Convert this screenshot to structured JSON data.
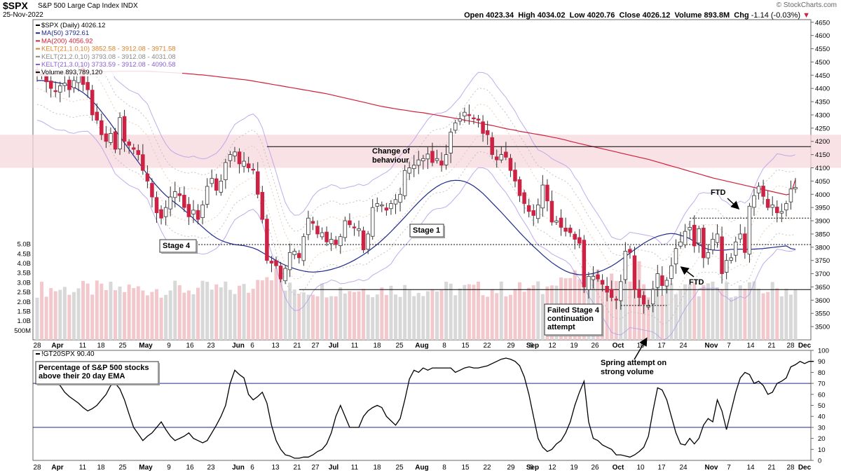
{
  "header": {
    "symbol": "$SPX",
    "name": "S&P 500 Large Cap Index",
    "exchange": "INDX",
    "date": "25-Nov-2022",
    "open_label": "Open",
    "open": "4023.34",
    "high_label": "High",
    "high": "4034.02",
    "low_label": "Low",
    "low": "4020.76",
    "close_label": "Close",
    "close": "4026.12",
    "volume_label": "Volume",
    "volume": "893.8M",
    "chg_label": "Chg",
    "chg": "-1.14 (-0.03%)",
    "watermark": "© StockCharts.com"
  },
  "colors": {
    "up": "#ffffff",
    "down": "#cc2244",
    "candle_edge": "#333333",
    "ma50": "#1f2a8c",
    "ma200": "#d0203a",
    "kelt1": "#e8c4a8",
    "kelt2": "#b8b8b8",
    "kelt3": "#b59ee8",
    "zone": "#f7d8dc",
    "vol_up": "#d8d8d8",
    "vol_down": "#f2c8cc"
  },
  "chart_data": [
    {
      "type": "candlestick",
      "title": "$SPX S&P 500 Large Cap Index INDX (Daily)",
      "legend": [
        {
          "label": "$SPX (Daily) 4026.12",
          "color": "#000000"
        },
        {
          "label": "MA(50) 3792.61",
          "color": "#1f2a8c"
        },
        {
          "label": "MA(200) 4056.92",
          "color": "#d0203a"
        },
        {
          "label": "KELT(21,1.0,10) 3852.58 - 3912.08 - 3971.58",
          "color": "#d9822b"
        },
        {
          "label": "KELT(21,2.0,10) 3793.08 - 3912.08 - 4031.08",
          "color": "#888888"
        },
        {
          "label": "KELT(21,3.0,10) 3733.59 - 3912.08 - 4090.58",
          "color": "#8a5fd1"
        },
        {
          "label": "Volume 893,789,120",
          "color": "#000000"
        }
      ],
      "ylim": [
        3450,
        4660
      ],
      "y_ticks": [
        3500,
        3550,
        3600,
        3650,
        3700,
        3750,
        3800,
        3850,
        3900,
        3950,
        4000,
        4050,
        4100,
        4150,
        4200,
        4250,
        4300,
        4350,
        4400,
        4450,
        4500,
        4550,
        4600,
        4650
      ],
      "volume_ticks": [
        "5.0B",
        "4.5B",
        "4.0B",
        "3.5B",
        "3.0B",
        "2.5B",
        "2.0B",
        "1.5B",
        "1.0B",
        "500M"
      ],
      "x_ticks": [
        "28",
        "Apr",
        "11",
        "18",
        "25",
        "May",
        "9",
        "16",
        "23",
        "Jun",
        "6",
        "13",
        "21",
        "27",
        "Jul",
        "11",
        "18",
        "25",
        "Aug",
        "8",
        "15",
        "22",
        "29",
        "Sep",
        "6",
        "12",
        "19",
        "26",
        "Oct",
        "10",
        "17",
        "24",
        "Nov",
        "7",
        "14",
        "21",
        "28",
        "Dec"
      ],
      "closes": [
        4460,
        4450,
        4425,
        4400,
        4390,
        4410,
        4420,
        4395,
        4430,
        4465,
        4415,
        4395,
        4300,
        4280,
        4225,
        4200,
        4230,
        4170,
        4290,
        4200,
        4185,
        4170,
        4150,
        4090,
        4050,
        3990,
        3930,
        3910,
        3950,
        3990,
        4010,
        3995,
        3950,
        3915,
        3940,
        3905,
        3960,
        4030,
        4060,
        4015,
        4050,
        4120,
        4150,
        4160,
        4115,
        4125,
        4100,
        4095,
        4000,
        3905,
        3750,
        3740,
        3730,
        3680,
        3720,
        3780,
        3785,
        3760,
        3840,
        3910,
        3890,
        3850,
        3855,
        3820,
        3830,
        3810,
        3840,
        3900,
        3885,
        3875,
        3870,
        3790,
        3850,
        3950,
        3965,
        3960,
        3940,
        3965,
        3980,
        4000,
        4090,
        4100,
        4110,
        4130,
        4135,
        4152,
        4120,
        4135,
        4110,
        4150,
        4235,
        4270,
        4285,
        4310,
        4300,
        4285,
        4280,
        4230,
        4225,
        4150,
        4130,
        4150,
        4140,
        4090,
        4050,
        3995,
        3965,
        3935,
        3920,
        3960,
        4035,
        3975,
        3895,
        3900,
        3875,
        3860,
        3855,
        3830,
        3815,
        3650,
        3690,
        3690,
        3680,
        3660,
        3630,
        3610,
        3600,
        3670,
        3785,
        3780,
        3640,
        3610,
        3585,
        3578,
        3640,
        3700,
        3655,
        3675,
        3730,
        3795,
        3820,
        3860,
        3875,
        3805,
        3870,
        3760,
        3780,
        3830,
        3850,
        3700,
        3750,
        3760,
        3820,
        3850,
        3780,
        3955,
        3995,
        4030,
        3992,
        3950,
        3960,
        3930,
        3935,
        3965,
        4020,
        4026
      ],
      "ma50": [
        4430,
        4430,
        4428,
        4426,
        4423,
        4420,
        4416,
        4410,
        4404,
        4395,
        4384,
        4370,
        4353,
        4334,
        4312,
        4290,
        4267,
        4242,
        4218,
        4194,
        4170,
        4146,
        4122,
        4098,
        4075,
        4053,
        4032,
        4013,
        3996,
        3981,
        3968,
        3955,
        3940,
        3925,
        3908,
        3892,
        3876,
        3861,
        3847,
        3835,
        3826,
        3819,
        3814,
        3810,
        3808,
        3806,
        3802,
        3797,
        3790,
        3780,
        3770,
        3760,
        3750,
        3740,
        3732,
        3725,
        3719,
        3714,
        3710,
        3707,
        3706,
        3707,
        3709,
        3712,
        3716,
        3721,
        3727,
        3734,
        3742,
        3751,
        3761,
        3772,
        3784,
        3797,
        3811,
        3826,
        3842,
        3859,
        3877,
        3895,
        3914,
        3933,
        3952,
        3970,
        3987,
        4003,
        4017,
        4029,
        4039,
        4046,
        4051,
        4053,
        4052,
        4048,
        4041,
        4031,
        4018,
        4003,
        3986,
        3968,
        3950,
        3932,
        3913,
        3894,
        3875,
        3856,
        3838,
        3820,
        3803,
        3787,
        3771,
        3756,
        3742,
        3730,
        3719,
        3710,
        3703,
        3699,
        3696,
        3696,
        3698,
        3701,
        3706,
        3712,
        3720,
        3729,
        3740,
        3752,
        3765,
        3778,
        3791,
        3803,
        3815,
        3825,
        3834,
        3841,
        3846,
        3850,
        3852,
        3850,
        3845,
        3840,
        3832,
        3822,
        3810,
        3800,
        3792,
        3790,
        3788,
        3789,
        3790,
        3792,
        3792,
        3793,
        3792,
        3792,
        3793,
        3794,
        3795,
        3797,
        3799,
        3801,
        3803,
        3805,
        3795,
        3792
      ],
      "ma200": [
        4450,
        4451,
        4452,
        4453,
        4454,
        4455,
        4456,
        4457,
        4458,
        4459,
        4460,
        4461,
        4462,
        4462,
        4463,
        4463,
        4464,
        4464,
        4465,
        4465,
        4465,
        4465,
        4465,
        4465,
        4465,
        4464,
        4463,
        4462,
        4461,
        4460,
        4459,
        4458,
        4457,
        4455,
        4454,
        4452,
        4451,
        4449,
        4447,
        4445,
        4443,
        4441,
        4439,
        4437,
        4435,
        4433,
        4431,
        4428,
        4425,
        4422,
        4419,
        4416,
        4413,
        4410,
        4407,
        4404,
        4401,
        4398,
        4395,
        4392,
        4389,
        4386,
        4383,
        4380,
        4376,
        4372,
        4368,
        4364,
        4360,
        4356,
        4352,
        4348,
        4344,
        4340,
        4336,
        4332,
        4329,
        4326,
        4323,
        4320,
        4318,
        4315,
        4312,
        4310,
        4308,
        4305,
        4302,
        4299,
        4296,
        4293,
        4290,
        4287,
        4284,
        4280,
        4277,
        4274,
        4270,
        4266,
        4263,
        4260,
        4256,
        4252,
        4248,
        4245,
        4242,
        4238,
        4235,
        4232,
        4229,
        4226,
        4223,
        4220,
        4216,
        4213,
        4209,
        4205,
        4200,
        4196,
        4192,
        4188,
        4184,
        4180,
        4176,
        4172,
        4168,
        4164,
        4160,
        4156,
        4152,
        4148,
        4144,
        4140,
        4136,
        4132,
        4127,
        4122,
        4117,
        4112,
        4107,
        4102,
        4097,
        4092,
        4087,
        4082,
        4077,
        4072,
        4067,
        4062,
        4058,
        4054,
        4050,
        4046,
        4042,
        4038,
        4034,
        4030,
        4026,
        4022,
        4018,
        4014,
        4010,
        4006,
        4002,
        3998,
        4002,
        4056
      ]
    },
    {
      "type": "line",
      "title": "!GT20SPX 90.40",
      "legend": [
        {
          "label": "!GT20SPX 90.40",
          "color": "#000000"
        }
      ],
      "ylim": [
        0,
        100
      ],
      "y_ticks": [
        0,
        10,
        20,
        30,
        40,
        50,
        60,
        70,
        80,
        90,
        100
      ],
      "h_lines": [
        70,
        30
      ],
      "values": [
        82,
        80,
        72,
        70,
        70,
        68,
        62,
        58,
        55,
        52,
        48,
        45,
        47,
        50,
        55,
        60,
        68,
        70,
        65,
        55,
        42,
        30,
        24,
        18,
        22,
        25,
        30,
        35,
        28,
        22,
        18,
        20,
        22,
        25,
        20,
        18,
        16,
        18,
        25,
        32,
        40,
        50,
        70,
        82,
        78,
        75,
        60,
        55,
        58,
        62,
        52,
        32,
        18,
        10,
        5,
        4,
        2,
        2,
        3,
        3,
        5,
        8,
        10,
        15,
        25,
        40,
        50,
        40,
        30,
        30,
        30,
        40,
        45,
        48,
        50,
        48,
        40,
        36,
        32,
        38,
        55,
        74,
        82,
        80,
        84,
        82,
        84,
        84,
        84,
        84,
        84,
        80,
        82,
        84,
        85,
        84,
        84,
        85,
        86,
        88,
        90,
        92,
        93,
        92,
        90,
        86,
        76,
        60,
        40,
        20,
        12,
        8,
        10,
        15,
        18,
        25,
        35,
        50,
        62,
        72,
        35,
        20,
        18,
        14,
        12,
        10,
        5,
        5,
        4,
        3,
        5,
        8,
        12,
        22,
        45,
        66,
        64,
        55,
        40,
        25,
        15,
        14,
        20,
        15,
        20,
        32,
        38,
        35,
        55,
        45,
        28,
        45,
        62,
        75,
        80,
        78,
        70,
        72,
        68,
        60,
        62,
        70,
        72,
        75,
        85,
        87,
        90,
        88,
        90,
        90
      ],
      "annotations": [
        {
          "label": "Percentage of S&P 500 stocks above their 20 day EMA",
          "location": "top-left"
        }
      ]
    }
  ],
  "annotations": {
    "change_of_behaviour": "Change of behaviour",
    "stage1": "Stage 1",
    "stage4": "Stage 4",
    "ftd1": "FTD",
    "ftd2": "FTD",
    "failed_stage4": "Failed Stage 4 continuation attempt",
    "spring": "Spring attempt on strong volume",
    "pct_label": "Percentage of S&P 500 stocks above their 20 day EMA"
  }
}
